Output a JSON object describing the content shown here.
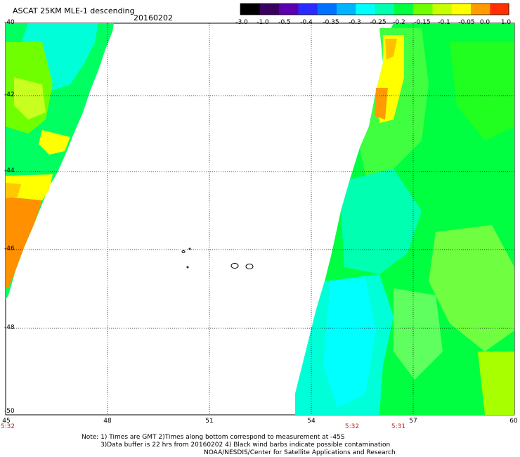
{
  "header": {
    "title": "ASCAT 25KM MLE-1 descending",
    "date": "20160202"
  },
  "colorbar": {
    "ticks": [
      "-3.0",
      "-1.0",
      "-0.5",
      "-0.4",
      "-0.35",
      "-0.3",
      "-0.25",
      "-0.2",
      "-0.15",
      "-0.1",
      "-0.05",
      "0.0",
      "1.0"
    ],
    "colors": [
      "#000000",
      "#3a0060",
      "#5a00b0",
      "#2a2aff",
      "#0070ff",
      "#00b4ff",
      "#00ffff",
      "#00ffb0",
      "#00ff40",
      "#70ff00",
      "#c8ff00",
      "#ffff00",
      "#ff9b00",
      "#ff3000"
    ]
  },
  "axes": {
    "lat_labels": [
      "-40",
      "-42",
      "-44",
      "-46",
      "-48",
      "-50"
    ],
    "lon_labels": [
      "45",
      "48",
      "51",
      "54",
      "57",
      "60"
    ]
  },
  "times": [
    {
      "label": "5:32",
      "lon": "45"
    },
    {
      "label": "5:32",
      "lon": "55.5"
    },
    {
      "label": "5:31",
      "lon": "56.4"
    }
  ],
  "notes": {
    "line1": "Note: 1) Times are GMT 2)Times along bottom correspond to measurement at -45S",
    "line2": "3)Data buffer is 22 hrs from 20160202 4) Black wind barbs indicate possible contamination",
    "line3": "NOAA/NESDIS/Center for Satellite Applications and Research"
  }
}
